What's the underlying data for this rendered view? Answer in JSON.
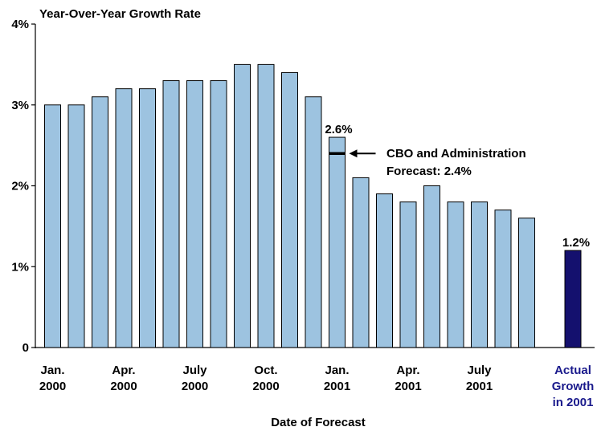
{
  "chart_data": {
    "type": "bar",
    "title": "Year-Over-Year Growth Rate",
    "xlabel": "Date of Forecast",
    "ylabel": "",
    "ylim": [
      0,
      4
    ],
    "yticks": [
      "0",
      "1%",
      "2%",
      "3%",
      "4%"
    ],
    "grid": false,
    "legend": "none",
    "forecast_values": [
      3.0,
      3.0,
      3.1,
      3.2,
      3.2,
      3.3,
      3.3,
      3.3,
      3.5,
      3.5,
      3.4,
      3.1,
      2.6,
      2.1,
      1.9,
      1.8,
      2.0,
      1.8,
      1.8,
      1.7,
      1.6
    ],
    "actual_value": 1.2,
    "x_tick_labels": [
      {
        "index": 0,
        "line1": "Jan.",
        "line2": "2000"
      },
      {
        "index": 3,
        "line1": "Apr.",
        "line2": "2000"
      },
      {
        "index": 6,
        "line1": "July",
        "line2": "2000"
      },
      {
        "index": 9,
        "line1": "Oct.",
        "line2": "2000"
      },
      {
        "index": 12,
        "line1": "Jan.",
        "line2": "2001"
      },
      {
        "index": 15,
        "line1": "Apr.",
        "line2": "2001"
      },
      {
        "index": 18,
        "line1": "July",
        "line2": "2001"
      }
    ],
    "actual_label_lines": [
      "Actual",
      "Growth",
      "in 2001"
    ],
    "data_labels": [
      {
        "index": 12,
        "text": "2.6%"
      },
      {
        "index": "actual",
        "text": "1.2%"
      }
    ],
    "reference_marker": {
      "index": 12,
      "value": 2.4,
      "label_lines": [
        "CBO and Administration",
        "Forecast: 2.4%"
      ]
    },
    "colors": {
      "forecast_bar": "#9dc3e0",
      "actual_bar": "#14106e",
      "actual_label": "#1a1a8c",
      "bar_outline": "#000000"
    }
  }
}
